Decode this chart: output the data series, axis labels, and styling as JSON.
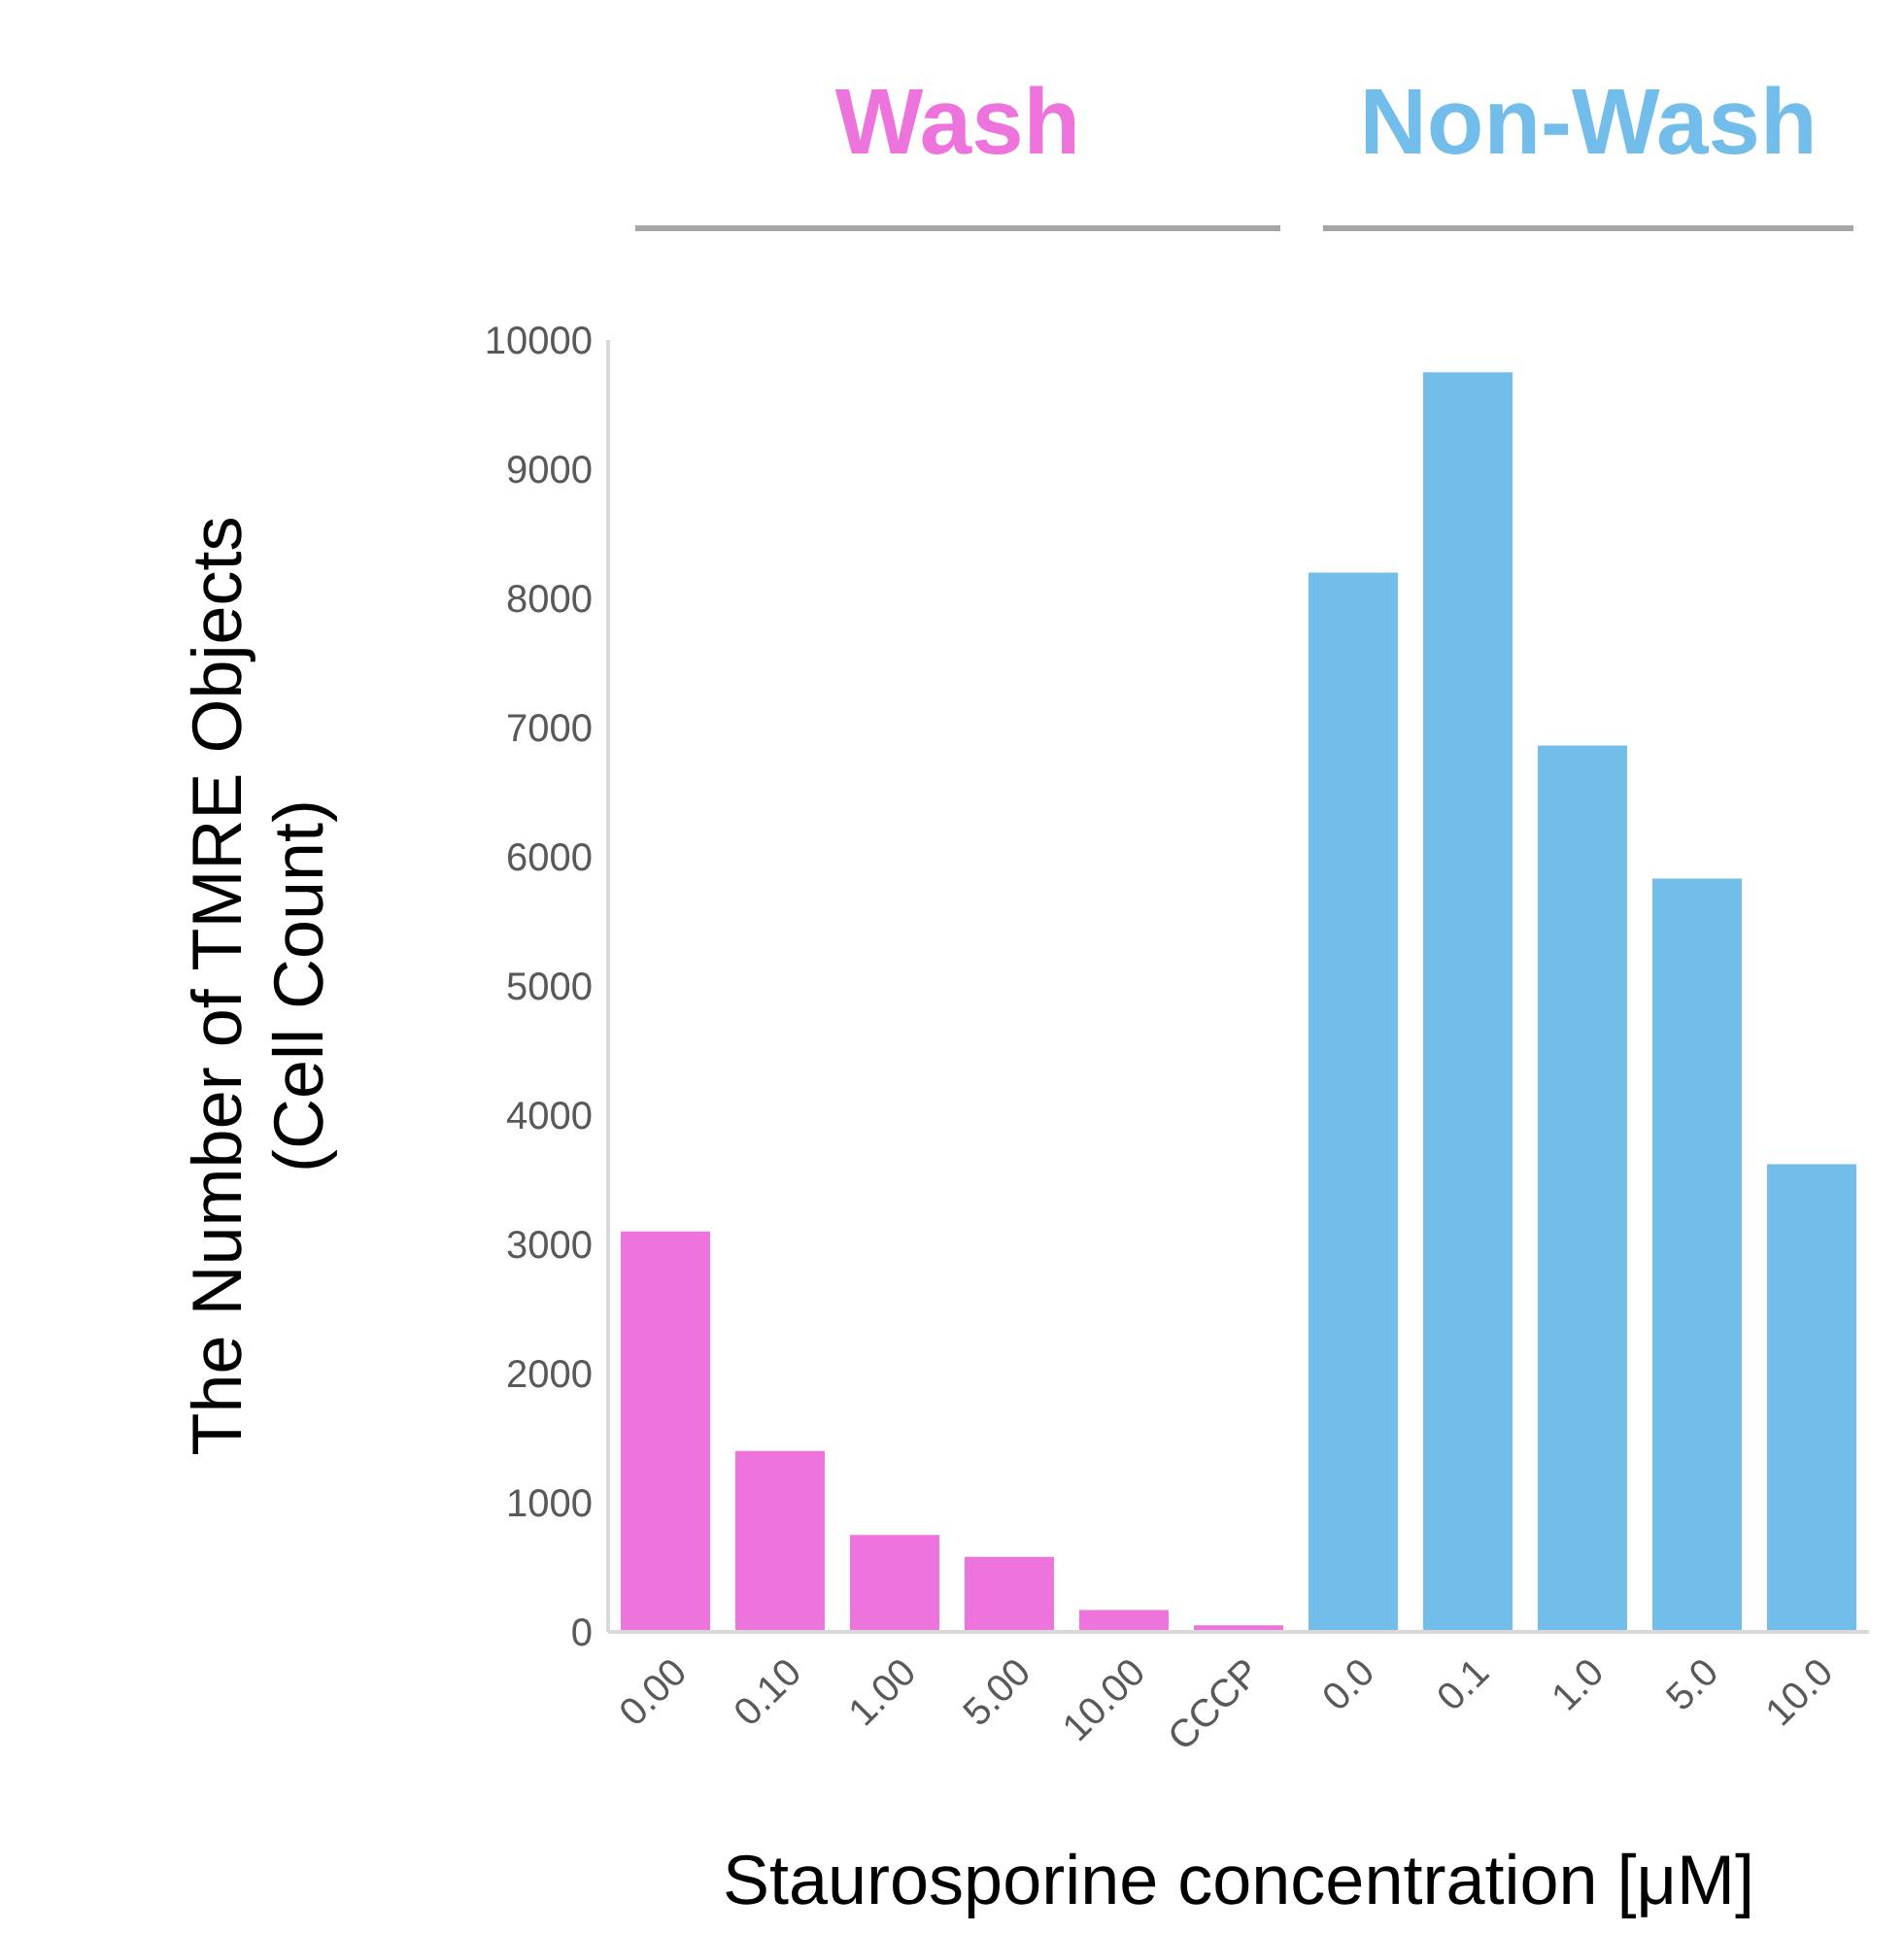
{
  "chart_data": {
    "type": "bar",
    "xlabel": "Staurosporine concentration [μM]",
    "ylabel": "The Number of TMRE Objects\n(Cell Count)",
    "categories": [
      "0.00",
      "0.10",
      "1.00",
      "5.00",
      "10.00",
      "CCCP",
      "0.0",
      "0.1",
      "1.0",
      "5.0",
      "10.0"
    ],
    "values": [
      3100,
      1400,
      750,
      580,
      170,
      50,
      8200,
      9750,
      6860,
      5830,
      3620
    ],
    "colors": [
      "#ed74dd",
      "#ed74dd",
      "#ed74dd",
      "#ed74dd",
      "#ed74dd",
      "#ed74dd",
      "#73bdeb",
      "#73bdeb",
      "#73bdeb",
      "#73bdeb",
      "#73bdeb"
    ],
    "annotations": [
      "Wash",
      "Non-Wash"
    ],
    "ylim": [
      0,
      10000
    ],
    "yticks": [
      0,
      1000,
      2000,
      3000,
      4000,
      5000,
      6000,
      7000,
      8000,
      9000,
      10000
    ],
    "grid": false
  }
}
